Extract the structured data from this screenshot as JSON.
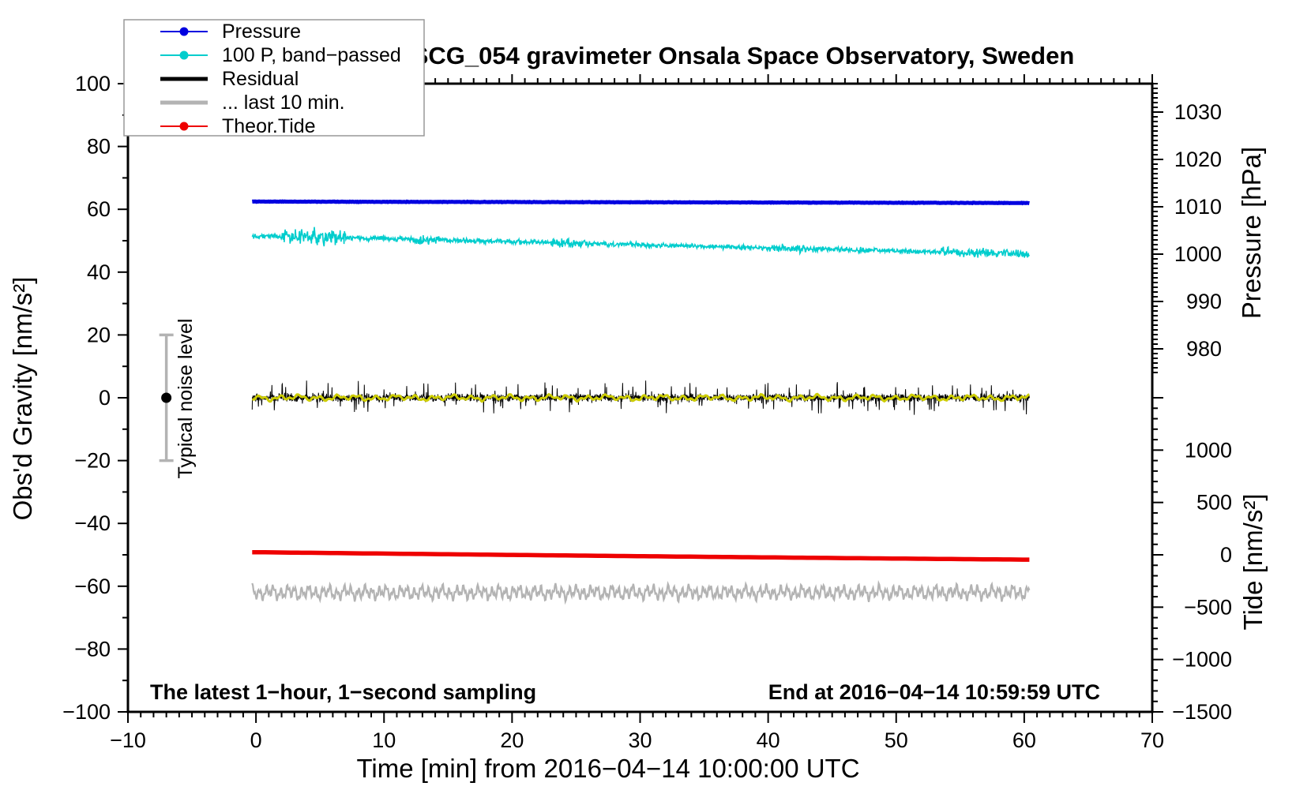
{
  "page": {
    "background": "#ffffff"
  },
  "title": "SCG_054 gravimeter Onsala Space Observatory, Sweden",
  "annotations": {
    "sampling_note": "The latest 1−hour, 1−second sampling",
    "end_note": "End at 2016−04−14 10:59:59 UTC",
    "noise_label": "Typical noise level"
  },
  "legend": {
    "items": [
      {
        "label": "Pressure",
        "color": "#0000e0",
        "marker": "line-dot"
      },
      {
        "label": "100 P, band−passed",
        "color": "#00cdcd",
        "marker": "line-dot"
      },
      {
        "label": "Residual",
        "color": "#000000",
        "marker": "thick-line"
      },
      {
        "label": "... last 10 min.",
        "color": "#b3b3b3",
        "marker": "thick-line"
      },
      {
        "label": "Theor.Tide",
        "color": "#ee0000",
        "marker": "line-dot"
      }
    ]
  },
  "chart_data": {
    "type": "line",
    "title": "SCG_054 gravimeter Onsala Space Observatory, Sweden",
    "xlabel": "Time [min] from 2016−04−14 10:00:00 UTC",
    "x_axis": {
      "range": [
        -10,
        70
      ],
      "minor_step": 1,
      "ticks": [
        {
          "v": -10,
          "label": "−10"
        },
        {
          "v": 0,
          "label": "0"
        },
        {
          "v": 10,
          "label": "10"
        },
        {
          "v": 20,
          "label": "20"
        },
        {
          "v": 30,
          "label": "30"
        },
        {
          "v": 40,
          "label": "40"
        },
        {
          "v": 50,
          "label": "50"
        },
        {
          "v": 60,
          "label": "60"
        },
        {
          "v": 70,
          "label": "70"
        }
      ]
    },
    "left_axis": {
      "label": "Obs'd Gravity [nm/s²]",
      "range": [
        -100,
        100
      ],
      "minor_step": 10,
      "major_step": 20,
      "ticks": [
        {
          "v": 100,
          "label": "100"
        },
        {
          "v": 80,
          "label": "80"
        },
        {
          "v": 60,
          "label": "60"
        },
        {
          "v": 40,
          "label": "40"
        },
        {
          "v": 20,
          "label": "20"
        },
        {
          "v": 0,
          "label": "0"
        },
        {
          "v": -20,
          "label": "−20"
        },
        {
          "v": -40,
          "label": "−40"
        },
        {
          "v": -60,
          "label": "−60"
        },
        {
          "v": -80,
          "label": "−80"
        },
        {
          "v": -100,
          "label": "−100"
        }
      ]
    },
    "pressure_axis": {
      "label": "Pressure [hPa]",
      "minor": {
        "from": 975,
        "to": 1036,
        "step": 1
      },
      "major_step": 10,
      "ticks": [
        {
          "v": 1030,
          "label": "1030"
        },
        {
          "v": 1020,
          "label": "1020"
        },
        {
          "v": 1010,
          "label": "1010"
        },
        {
          "v": 1000,
          "label": "1000"
        },
        {
          "v": 990,
          "label": "990"
        },
        {
          "v": 980,
          "label": "980"
        }
      ]
    },
    "tide_axis": {
      "label": "Tide [nm/s²]",
      "minor": {
        "from": -1500,
        "to": 1500,
        "step": 100
      },
      "major_step": 500,
      "ticks": [
        {
          "v": 1000,
          "label": "1000"
        },
        {
          "v": 500,
          "label": "500"
        },
        {
          "v": 0,
          "label": "0"
        },
        {
          "v": -500,
          "label": "−500"
        },
        {
          "v": -1000,
          "label": "−1000"
        },
        {
          "v": -1500,
          "label": "−1500"
        }
      ]
    },
    "noise_bar": {
      "x_min": -7,
      "center": 0,
      "half_range": 20,
      "label": "Typical noise level"
    },
    "series": [
      {
        "id": "pressure",
        "name": "Pressure",
        "axis": "pressure",
        "units": "hPa",
        "color": "#0000e0",
        "width": 5,
        "kind": "noisy",
        "start": 1011.1,
        "end": 1010.8,
        "noise": 0.06,
        "points": 900,
        "seed": 11
      },
      {
        "id": "band_passed",
        "name": "100 P, band−passed",
        "axis": "gravity",
        "units": "nm/s²",
        "color": "#00cdcd",
        "width": 1.6,
        "kind": "noisy",
        "start": 51.6,
        "end": 45.8,
        "noise": 0.9,
        "points": 1600,
        "seed": 22,
        "bursts": [
          [
            2,
            7,
            3.2
          ],
          [
            12.5,
            14.5,
            2.2
          ],
          [
            23,
            26,
            1.7
          ],
          [
            40,
            44,
            1.5
          ],
          [
            53.5,
            60.4,
            1.9
          ]
        ]
      },
      {
        "id": "residual",
        "name": "Residual",
        "axis": "gravity",
        "units": "nm/s²",
        "color": "#000000",
        "width": 1,
        "kind": "spiky",
        "center": 0,
        "noise": 1.5,
        "spike_prob": 0.06,
        "spike_amp": 3.5,
        "points": 2600,
        "seed": 33
      },
      {
        "id": "residual_smoothed",
        "name": "",
        "axis": "gravity",
        "units": "nm/s²",
        "color": "#cccc00",
        "width": 3,
        "kind": "smooth",
        "center": 0,
        "amp": 0.9,
        "period": 1.5,
        "jitter": 0.12,
        "points": 800,
        "seed": 44
      },
      {
        "id": "last_10_min",
        "name": "... last 10 min.",
        "axis": "gravity",
        "units": "nm/s²",
        "color": "#b3b3b3",
        "width": 2.2,
        "kind": "smooth",
        "center": -62,
        "amp": 2.3,
        "period": 0.55,
        "jitter": 0.25,
        "points": 1100,
        "seed": 55
      },
      {
        "id": "theor_tide",
        "name": "Theor.Tide",
        "axis": "tide",
        "units": "nm/s²",
        "color": "#ee0000",
        "width": 5.5,
        "kind": "trend",
        "start": 25,
        "end": -46,
        "curve": -10,
        "points": 120,
        "seed": 66
      }
    ]
  }
}
